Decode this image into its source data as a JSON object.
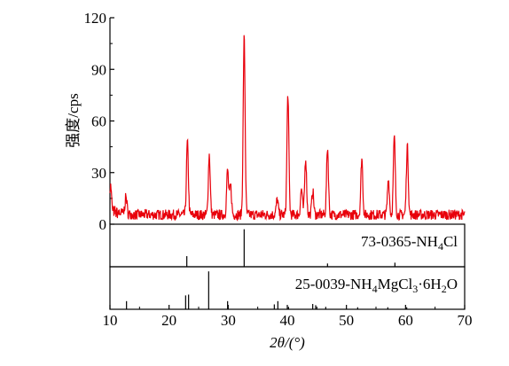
{
  "chart_data": {
    "type": "line",
    "xlabel": "2θ/(°)",
    "ylabel": "强度/cps",
    "xlim": [
      10,
      70
    ],
    "ylim": [
      0,
      120
    ],
    "xticks": [
      "10",
      "20",
      "30",
      "40",
      "50",
      "60",
      "70"
    ],
    "yticks": [
      "0",
      "30",
      "60",
      "90",
      "120"
    ],
    "series": [
      {
        "color": "#e8000b",
        "baseline": 4,
        "peaks": [
          {
            "x": 10.1,
            "y": 19
          },
          {
            "x": 12.7,
            "y": 14
          },
          {
            "x": 23.1,
            "y": 46
          },
          {
            "x": 26.8,
            "y": 39
          },
          {
            "x": 29.9,
            "y": 30
          },
          {
            "x": 30.4,
            "y": 21
          },
          {
            "x": 32.7,
            "y": 107
          },
          {
            "x": 38.3,
            "y": 13
          },
          {
            "x": 40.1,
            "y": 74
          },
          {
            "x": 42.4,
            "y": 19
          },
          {
            "x": 43.1,
            "y": 37
          },
          {
            "x": 44.3,
            "y": 18
          },
          {
            "x": 46.8,
            "y": 43
          },
          {
            "x": 52.6,
            "y": 37
          },
          {
            "x": 57.1,
            "y": 25
          },
          {
            "x": 58.1,
            "y": 49
          },
          {
            "x": 60.3,
            "y": 44
          }
        ]
      }
    ],
    "reference_patterns": [
      {
        "label_parts": [
          "73-0365-NH",
          "4",
          "Cl"
        ],
        "lines": [
          {
            "x": 23.0,
            "h": 0.26
          },
          {
            "x": 32.7,
            "h": 0.92
          },
          {
            "x": 46.8,
            "h": 0.08
          },
          {
            "x": 58.2,
            "h": 0.1
          }
        ]
      },
      {
        "label_parts": [
          "25-0039-NH",
          "4",
          "MgCl",
          "3",
          "·6H",
          "2",
          "O"
        ],
        "lines": [
          {
            "x": 12.8,
            "h": 0.2
          },
          {
            "x": 22.8,
            "h": 0.34
          },
          {
            "x": 23.3,
            "h": 0.36
          },
          {
            "x": 26.7,
            "h": 0.93
          },
          {
            "x": 29.9,
            "h": 0.2
          },
          {
            "x": 37.8,
            "h": 0.12
          },
          {
            "x": 38.4,
            "h": 0.2
          },
          {
            "x": 40.2,
            "h": 0.06
          },
          {
            "x": 44.3,
            "h": 0.13
          },
          {
            "x": 44.8,
            "h": 0.1
          },
          {
            "x": 46.5,
            "h": 0.06
          },
          {
            "x": 51.9,
            "h": 0.05
          },
          {
            "x": 57.0,
            "h": 0.05
          },
          {
            "x": 60.2,
            "h": 0.05
          }
        ]
      }
    ]
  }
}
